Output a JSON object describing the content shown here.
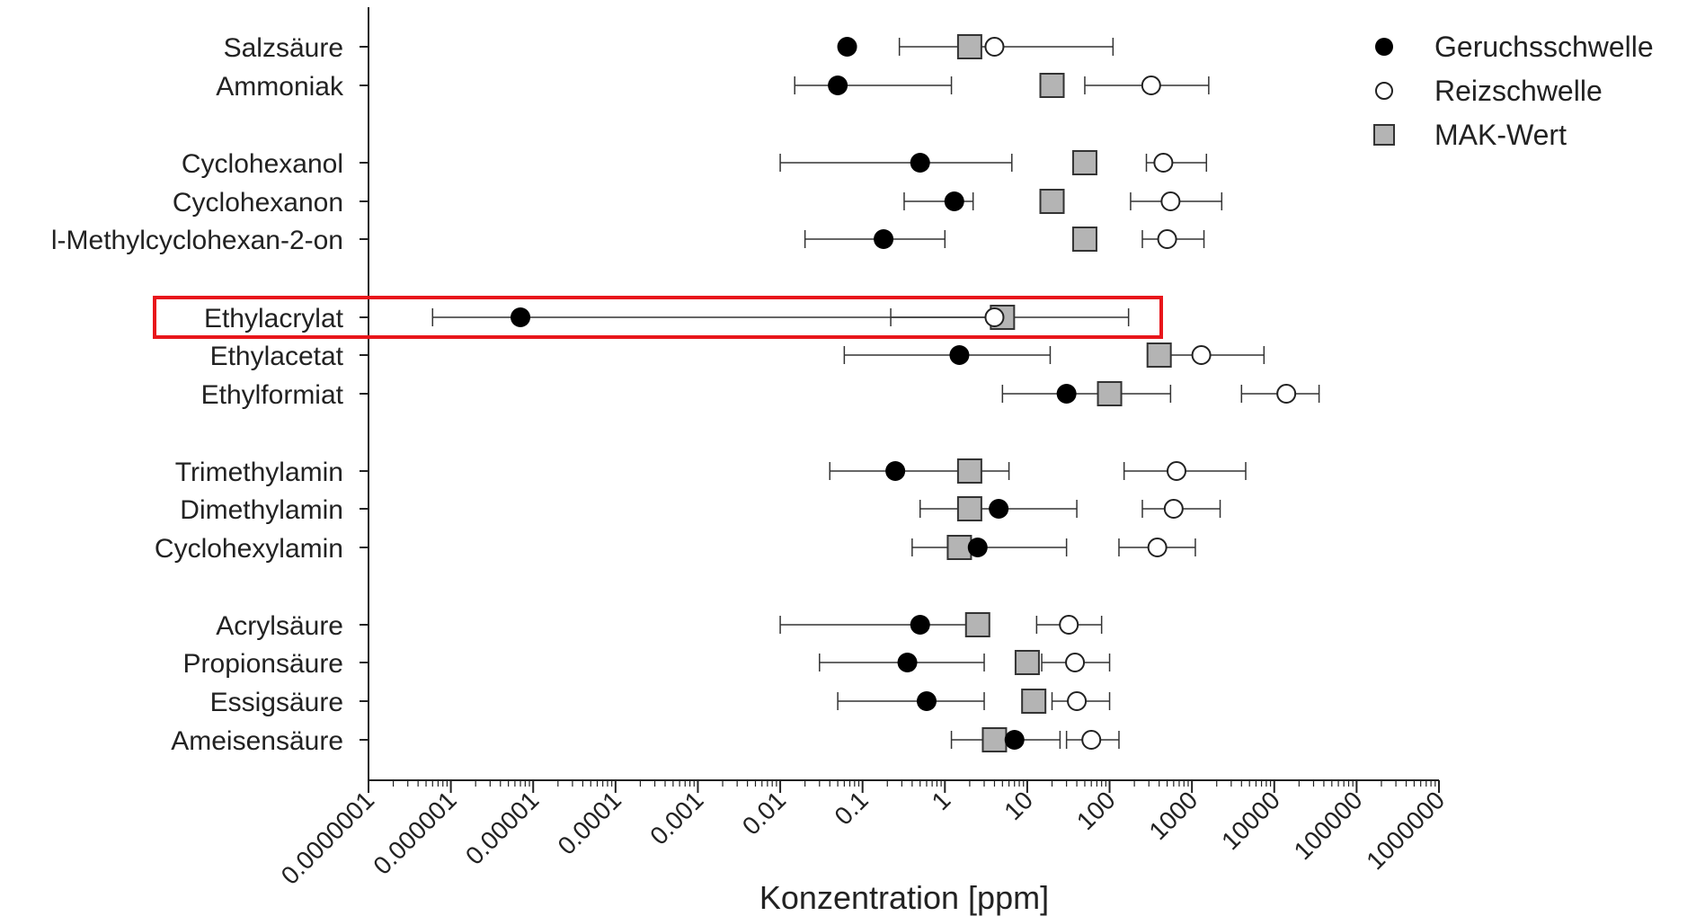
{
  "chart_data": {
    "type": "scatter",
    "x_scale": "log",
    "xlim": [
      1e-07,
      1000000
    ],
    "xlabel": "Konzentration [ppm]",
    "xticks": [
      "0.0000001",
      "0.000001",
      "0.00001",
      "0.0001",
      "0.001",
      "0.01",
      "0.1",
      "1",
      "10",
      "100",
      "1000",
      "10000",
      "100000",
      "1000000"
    ],
    "grid": false,
    "legend_position": "top-right",
    "legend": [
      {
        "name": "Geruchsschwelle",
        "marker": "filled-circle"
      },
      {
        "name": "Reizschwelle",
        "marker": "open-circle"
      },
      {
        "name": "MAK-Wert",
        "marker": "grey-square"
      }
    ],
    "highlighted_category": "Ethylacrylat",
    "highlight_color": "#e8161b",
    "categories": [
      {
        "name": "Salzsäure",
        "geruch": 0.065,
        "reiz": 4,
        "reiz_err": [
          0.28,
          110
        ],
        "mak": 2
      },
      {
        "name": "Ammoniak",
        "geruch": 0.05,
        "geruch_err": [
          0.015,
          1.2
        ],
        "reiz": 320,
        "reiz_err": [
          50,
          1600
        ],
        "mak": 20
      },
      {
        "name": "Cyclohexanol",
        "geruch": 0.5,
        "geruch_err": [
          0.01,
          6.5
        ],
        "reiz": 450,
        "reiz_err": [
          280,
          1500
        ],
        "mak": 50
      },
      {
        "name": "Cyclohexanon",
        "geruch": 1.3,
        "geruch_err": [
          0.32,
          2.2
        ],
        "reiz": 550,
        "reiz_err": [
          180,
          2300
        ],
        "mak": 20
      },
      {
        "name": "l-Methylcyclohexan-2-on",
        "geruch": 0.18,
        "geruch_err": [
          0.02,
          1
        ],
        "reiz": 500,
        "reiz_err": [
          250,
          1400
        ],
        "mak": 50
      },
      {
        "name": "Ethylacrylat",
        "geruch": 7e-06,
        "geruch_err": [
          6e-07,
          6
        ],
        "reiz": 4,
        "reiz_err": [
          0.22,
          170
        ],
        "mak": 5
      },
      {
        "name": "Ethylacetat",
        "geruch": 1.5,
        "geruch_err": [
          0.06,
          19
        ],
        "reiz": 1300,
        "reiz_err": [
          400,
          7500
        ],
        "mak": 400
      },
      {
        "name": "Ethylformiat",
        "geruch": 30,
        "geruch_err": [
          5,
          550
        ],
        "reiz": 14000,
        "reiz_err": [
          4000,
          35000
        ],
        "mak": 100
      },
      {
        "name": "Trimethylamin",
        "geruch": 0.25,
        "geruch_err": [
          0.04,
          6
        ],
        "reiz": 650,
        "reiz_err": [
          150,
          4500
        ],
        "mak": 2
      },
      {
        "name": "Dimethylamin",
        "geruch": 4.5,
        "geruch_err": [
          0.5,
          40
        ],
        "reiz": 600,
        "reiz_err": [
          250,
          2200
        ],
        "mak": 2
      },
      {
        "name": "Cyclohexylamin",
        "geruch": 2.5,
        "geruch_err": [
          0.4,
          30
        ],
        "reiz": 380,
        "reiz_err": [
          130,
          1100
        ],
        "mak": 1.5
      },
      {
        "name": "Acrylsäure",
        "geruch": 0.5,
        "geruch_err": [
          0.01,
          2
        ],
        "reiz": 32,
        "reiz_err": [
          13,
          80
        ],
        "mak": 2.5
      },
      {
        "name": "Propionsäure",
        "geruch": 0.35,
        "geruch_err": [
          0.03,
          3
        ],
        "reiz": 38,
        "reiz_err": [
          15,
          100
        ],
        "mak": 10
      },
      {
        "name": "Essigsäure",
        "geruch": 0.6,
        "geruch_err": [
          0.05,
          3
        ],
        "reiz": 40,
        "reiz_err": [
          20,
          100
        ],
        "mak": 12
      },
      {
        "name": "Ameisensäure",
        "geruch": 7,
        "geruch_err": [
          1.2,
          25
        ],
        "reiz": 60,
        "reiz_err": [
          30,
          130
        ],
        "mak": 4
      }
    ]
  }
}
